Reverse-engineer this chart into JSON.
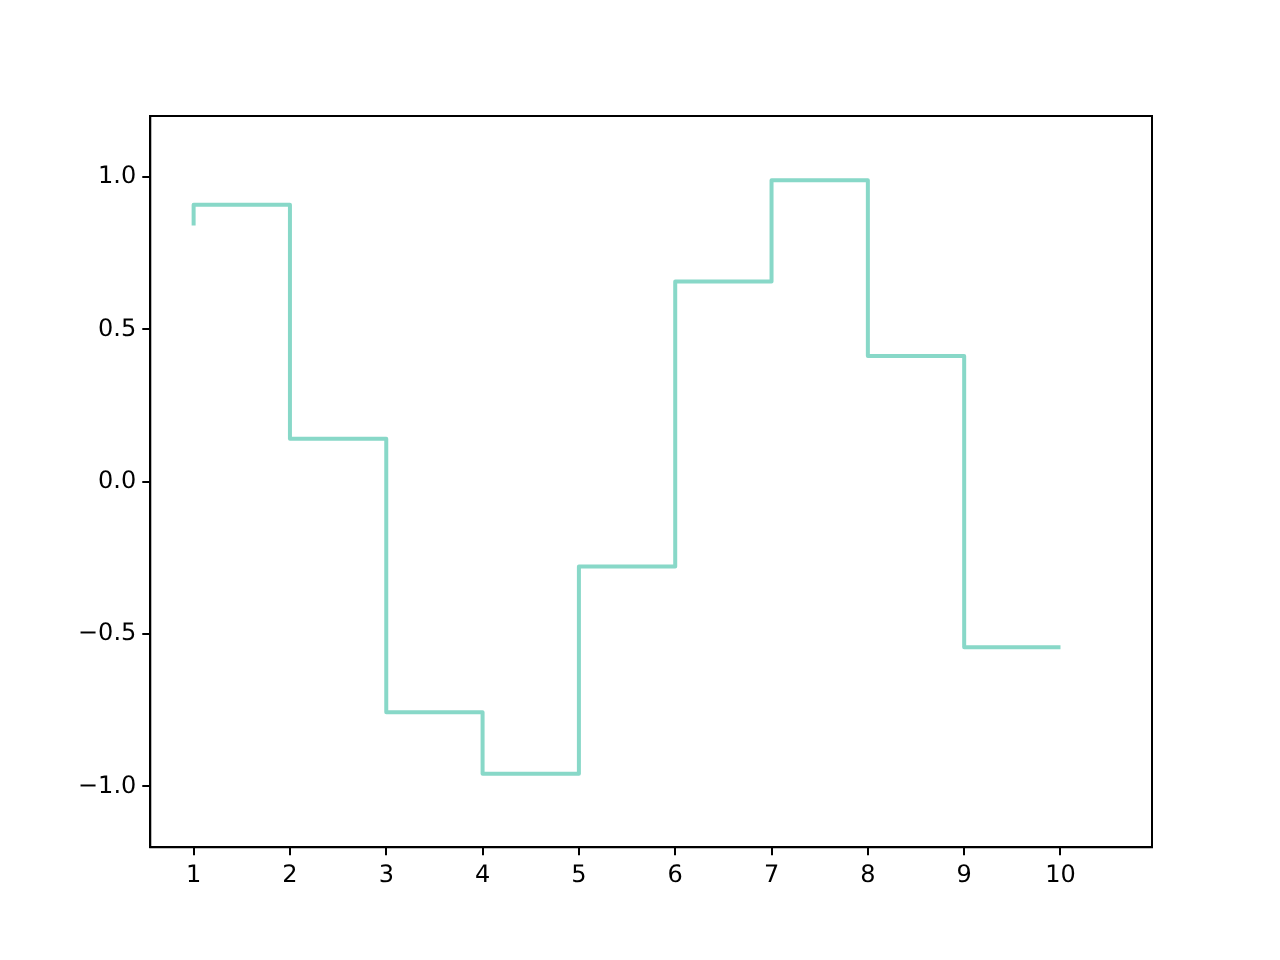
{
  "chart_data": {
    "type": "step",
    "x": [
      1,
      2,
      3,
      4,
      5,
      6,
      7,
      8,
      9,
      10
    ],
    "values": [
      0.841,
      0.909,
      0.141,
      -0.757,
      -0.959,
      -0.279,
      0.657,
      0.989,
      0.412,
      -0.544
    ],
    "color": "#88d8c8",
    "xlim": [
      0.55,
      10.95
    ],
    "xticks": [
      1,
      2,
      3,
      4,
      5,
      6,
      7,
      8,
      9,
      10
    ],
    "ylim": [
      -1.2,
      1.2
    ],
    "yticks": [
      {
        "value": -1,
        "label": "−1.0"
      },
      {
        "value": -0.5,
        "label": "−0.5"
      },
      {
        "value": 0,
        "label": "0.0"
      },
      {
        "value": 0.5,
        "label": "0.5"
      },
      {
        "value": 1,
        "label": "1.0"
      }
    ],
    "grid": false,
    "legend": false
  }
}
